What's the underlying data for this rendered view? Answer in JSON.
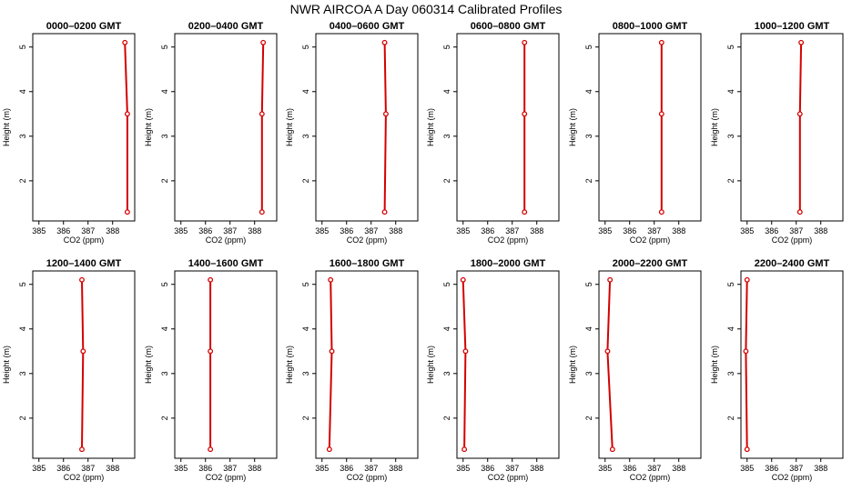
{
  "title": "NWR AIRCOA A  Day 060314  Calibrated Profiles",
  "chart_data": {
    "type": "line",
    "xlabel": "CO2 (ppm)",
    "ylabel": "Height (m)",
    "xlim": [
      384.75,
      388.9
    ],
    "ylim": [
      1.1,
      5.3
    ],
    "xticks": [
      "385",
      "386",
      "387",
      "388"
    ],
    "yticks": [
      "2",
      "3",
      "4",
      "5"
    ],
    "line_color": "#d40000",
    "panels": [
      {
        "title": "0000–0200 GMT",
        "points": [
          {
            "height": 1.3,
            "co2": 388.6
          },
          {
            "height": 3.5,
            "co2": 388.6
          },
          {
            "height": 5.1,
            "co2": 388.5
          }
        ]
      },
      {
        "title": "0200–0400 GMT",
        "points": [
          {
            "height": 1.3,
            "co2": 388.3
          },
          {
            "height": 3.5,
            "co2": 388.3
          },
          {
            "height": 5.1,
            "co2": 388.35
          }
        ]
      },
      {
        "title": "0400–0600 GMT",
        "points": [
          {
            "height": 1.3,
            "co2": 387.55
          },
          {
            "height": 3.5,
            "co2": 387.6
          },
          {
            "height": 5.1,
            "co2": 387.55
          }
        ]
      },
      {
        "title": "0600–0800 GMT",
        "points": [
          {
            "height": 1.3,
            "co2": 387.5
          },
          {
            "height": 3.5,
            "co2": 387.5
          },
          {
            "height": 5.1,
            "co2": 387.5
          }
        ]
      },
      {
        "title": "0800–1000 GMT",
        "points": [
          {
            "height": 1.3,
            "co2": 387.3
          },
          {
            "height": 3.5,
            "co2": 387.3
          },
          {
            "height": 5.1,
            "co2": 387.3
          }
        ]
      },
      {
        "title": "1000–1200 GMT",
        "points": [
          {
            "height": 1.3,
            "co2": 387.15
          },
          {
            "height": 3.5,
            "co2": 387.15
          },
          {
            "height": 5.1,
            "co2": 387.2
          }
        ]
      },
      {
        "title": "1200–1400 GMT",
        "points": [
          {
            "height": 1.3,
            "co2": 386.75
          },
          {
            "height": 3.5,
            "co2": 386.8
          },
          {
            "height": 5.1,
            "co2": 386.75
          }
        ]
      },
      {
        "title": "1400–1600 GMT",
        "points": [
          {
            "height": 1.3,
            "co2": 386.2
          },
          {
            "height": 3.5,
            "co2": 386.2
          },
          {
            "height": 5.1,
            "co2": 386.2
          }
        ]
      },
      {
        "title": "1600–1800 GMT",
        "points": [
          {
            "height": 1.3,
            "co2": 385.3
          },
          {
            "height": 3.5,
            "co2": 385.4
          },
          {
            "height": 5.1,
            "co2": 385.35
          }
        ]
      },
      {
        "title": "1800–2000 GMT",
        "points": [
          {
            "height": 1.3,
            "co2": 385.05
          },
          {
            "height": 3.5,
            "co2": 385.1
          },
          {
            "height": 5.1,
            "co2": 385.0
          }
        ]
      },
      {
        "title": "2000–2200 GMT",
        "points": [
          {
            "height": 1.3,
            "co2": 385.3
          },
          {
            "height": 3.5,
            "co2": 385.1
          },
          {
            "height": 5.1,
            "co2": 385.2
          }
        ]
      },
      {
        "title": "2200–2400 GMT",
        "points": [
          {
            "height": 1.3,
            "co2": 385.0
          },
          {
            "height": 3.5,
            "co2": 384.95
          },
          {
            "height": 5.1,
            "co2": 385.0
          }
        ]
      }
    ]
  }
}
